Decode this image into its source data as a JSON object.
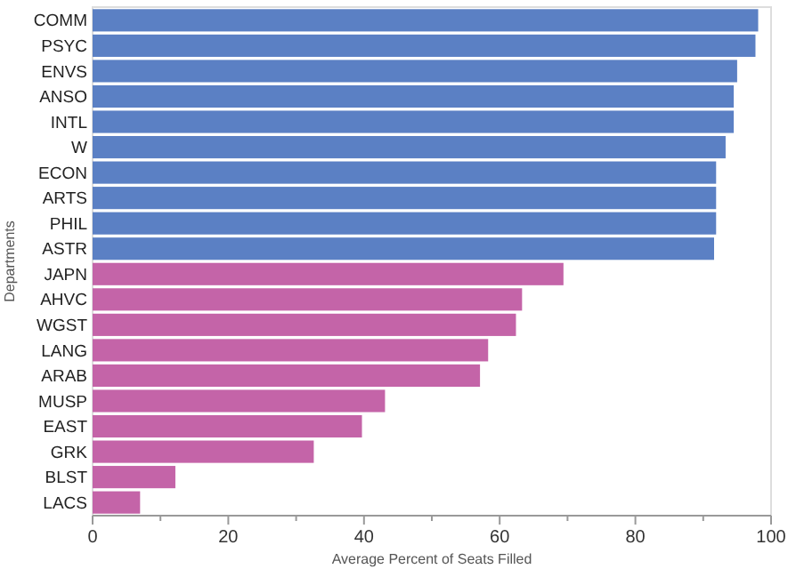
{
  "chart_data": {
    "type": "bar",
    "orientation": "horizontal",
    "xlabel": "Average Percent of Seats Filled",
    "ylabel": "Departments",
    "categories": [
      "COMM",
      "PSYC",
      "ENVS",
      "ANSO",
      "INTL",
      "W",
      "ECON",
      "ARTS",
      "PHIL",
      "ASTR",
      "JAPN",
      "AHVC",
      "WGST",
      "LANG",
      "ARAB",
      "MUSP",
      "EAST",
      "GRK",
      "BLST",
      "LACS"
    ],
    "values": [
      98.1,
      97.7,
      95.0,
      94.5,
      94.5,
      93.3,
      91.9,
      91.9,
      91.9,
      91.6,
      69.4,
      63.3,
      62.4,
      58.3,
      57.1,
      43.1,
      39.7,
      32.6,
      12.2,
      7.0
    ],
    "colors": [
      "#5b80c4",
      "#5b80c4",
      "#5b80c4",
      "#5b80c4",
      "#5b80c4",
      "#5b80c4",
      "#5b80c4",
      "#5b80c4",
      "#5b80c4",
      "#5b80c4",
      "#c464a8",
      "#c464a8",
      "#c464a8",
      "#c464a8",
      "#c464a8",
      "#c464a8",
      "#c464a8",
      "#c464a8",
      "#c464a8",
      "#c464a8"
    ],
    "xlim": [
      0,
      100
    ],
    "xticks": [
      0,
      {
        "value": 10,
        "label": null
      },
      20,
      {
        "value": 30,
        "label": null
      },
      40,
      {
        "value": 50,
        "label": null
      },
      60,
      {
        "value": 70,
        "label": null
      },
      80,
      {
        "value": 90,
        "label": null
      },
      100
    ]
  }
}
